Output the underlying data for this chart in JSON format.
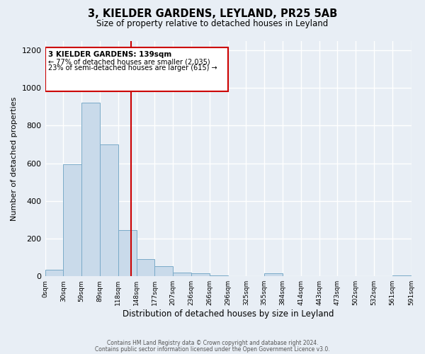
{
  "title": "3, KIELDER GARDENS, LEYLAND, PR25 5AB",
  "subtitle": "Size of property relative to detached houses in Leyland",
  "xlabel": "Distribution of detached houses by size in Leyland",
  "ylabel": "Number of detached properties",
  "bar_color": "#c9daea",
  "bar_edge_color": "#7aaac8",
  "bg_color": "#e8eef5",
  "grid_color": "#ffffff",
  "annotation_box_color": "#cc0000",
  "vline_color": "#cc0000",
  "vline_x": 139,
  "annotation_title": "3 KIELDER GARDENS: 139sqm",
  "annotation_line1": "← 77% of detached houses are smaller (2,035)",
  "annotation_line2": "23% of semi-detached houses are larger (615) →",
  "bin_edges": [
    0,
    29.5,
    59,
    88.5,
    118,
    147.5,
    177,
    206.5,
    236,
    265.5,
    295,
    324.5,
    354,
    383.5,
    413,
    442.5,
    472,
    501.5,
    531,
    560.5,
    591
  ],
  "bin_counts": [
    35,
    595,
    920,
    700,
    245,
    90,
    55,
    20,
    15,
    5,
    0,
    0,
    15,
    0,
    0,
    0,
    0,
    0,
    0,
    5
  ],
  "tick_labels": [
    "0sqm",
    "30sqm",
    "59sqm",
    "89sqm",
    "118sqm",
    "148sqm",
    "177sqm",
    "207sqm",
    "236sqm",
    "266sqm",
    "296sqm",
    "325sqm",
    "355sqm",
    "384sqm",
    "414sqm",
    "443sqm",
    "473sqm",
    "502sqm",
    "532sqm",
    "561sqm",
    "591sqm"
  ],
  "ylim": [
    0,
    1250
  ],
  "yticks": [
    0,
    200,
    400,
    600,
    800,
    1000,
    1200
  ],
  "footer_line1": "Contains HM Land Registry data © Crown copyright and database right 2024.",
  "footer_line2": "Contains public sector information licensed under the Open Government Licence v3.0."
}
